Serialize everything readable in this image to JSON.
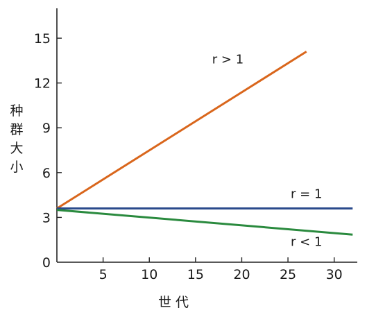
{
  "chart_data": {
    "type": "line",
    "title": "",
    "xlabel": "世 代",
    "ylabel": "种群大小",
    "ylabel_chars": [
      "种",
      "群",
      "大",
      "小"
    ],
    "xlim": [
      0,
      32.5
    ],
    "ylim": [
      0,
      17
    ],
    "xticks": [
      5,
      10,
      15,
      20,
      25,
      30
    ],
    "yticks": [
      0,
      3,
      6,
      9,
      12,
      15
    ],
    "grid": false,
    "series": [
      {
        "name": "r>1",
        "color": "#d9661c",
        "x": [
          0,
          27
        ],
        "y": [
          3.6,
          14.1
        ]
      },
      {
        "name": "r=1",
        "color": "#2a4a8c",
        "x": [
          0,
          32
        ],
        "y": [
          3.6,
          3.6
        ]
      },
      {
        "name": "r<1",
        "color": "#2a8a3e",
        "x": [
          0,
          32
        ],
        "y": [
          3.5,
          1.85
        ]
      }
    ],
    "annotations": [
      {
        "text": "r > 1",
        "series": "r>1",
        "x": 18.5,
        "y": 13.3
      },
      {
        "text": "r = 1",
        "series": "r=1",
        "x": 27,
        "y": 4.3
      },
      {
        "text": "r < 1",
        "series": "r<1",
        "x": 27,
        "y": 1.1
      }
    ]
  }
}
